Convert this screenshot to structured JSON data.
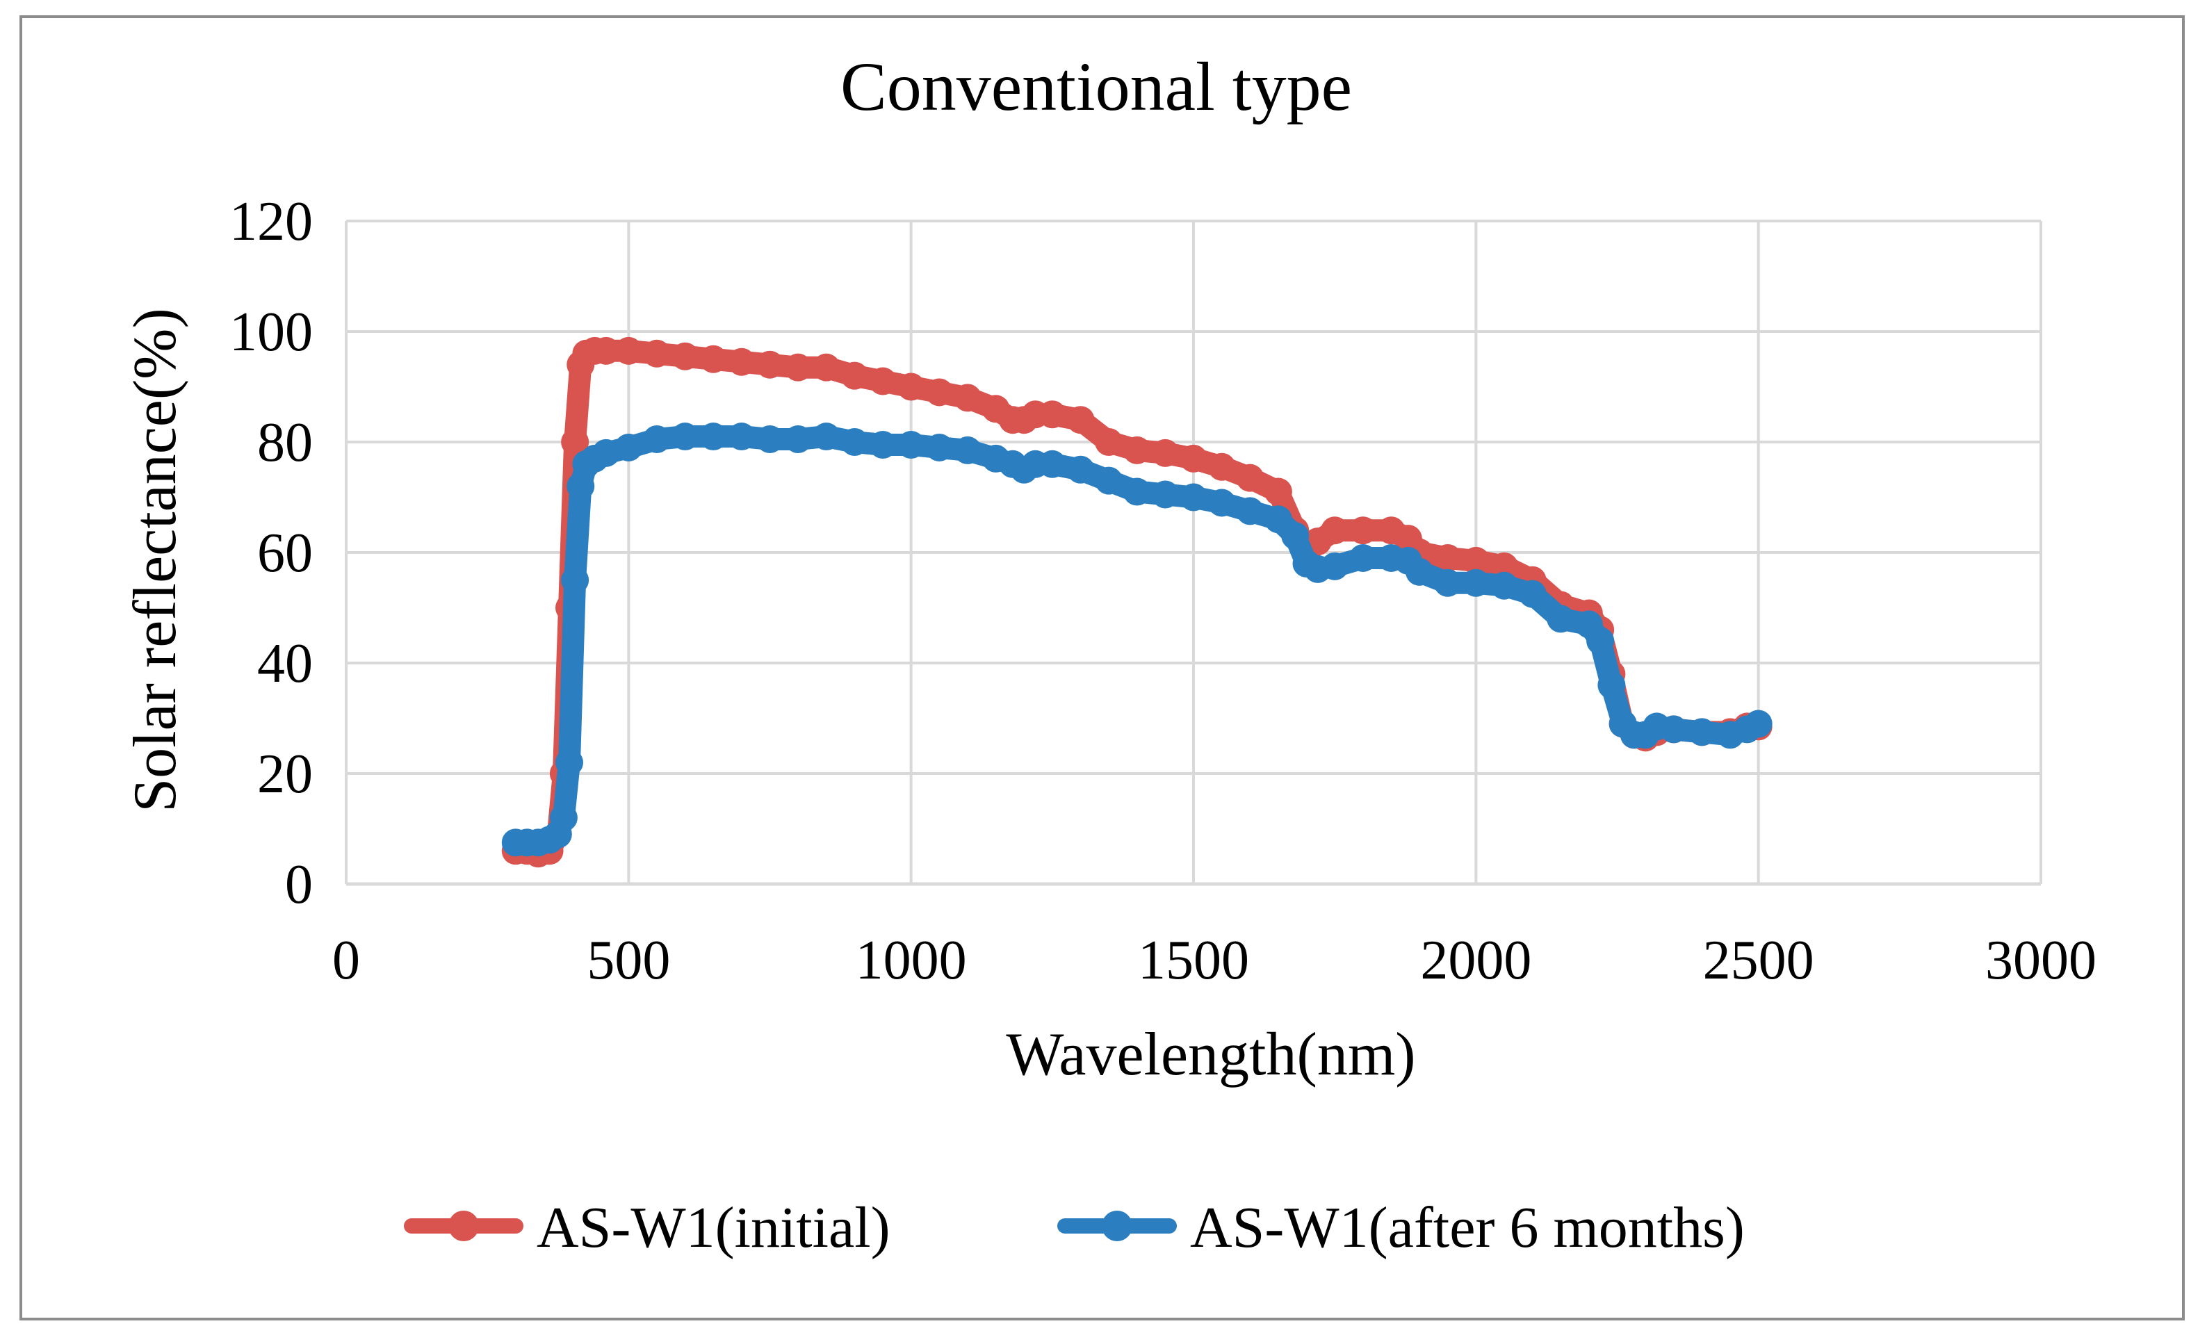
{
  "chart_data": {
    "type": "line",
    "title": "Conventional type",
    "xlabel": "Wavelength(nm)",
    "ylabel": "Solar reflectance(%)",
    "xlim": [
      0,
      3000
    ],
    "ylim": [
      0,
      120
    ],
    "xticks": [
      0,
      500,
      1000,
      1500,
      2000,
      2500,
      3000
    ],
    "yticks": [
      0,
      20,
      40,
      60,
      80,
      100,
      120
    ],
    "grid": true,
    "legend_position": "bottom",
    "series": [
      {
        "name": "AS-W1(initial)",
        "color": "#d9534f",
        "x": [
          300,
          320,
          340,
          360,
          375,
          385,
          395,
          405,
          415,
          425,
          440,
          460,
          500,
          550,
          600,
          650,
          700,
          750,
          800,
          850,
          900,
          950,
          1000,
          1050,
          1100,
          1150,
          1180,
          1200,
          1220,
          1250,
          1300,
          1350,
          1400,
          1450,
          1500,
          1550,
          1600,
          1650,
          1680,
          1700,
          1720,
          1750,
          1800,
          1850,
          1880,
          1900,
          1950,
          2000,
          2050,
          2100,
          2150,
          2200,
          2220,
          2240,
          2260,
          2280,
          2300,
          2320,
          2350,
          2400,
          2450,
          2480,
          2500
        ],
        "y": [
          6,
          6,
          5.5,
          6,
          9,
          20,
          50,
          80,
          94,
          96,
          96.5,
          96.5,
          96.5,
          96,
          95.5,
          95,
          94.5,
          94,
          93.5,
          93.5,
          92,
          91,
          90,
          89,
          88,
          86,
          84,
          84,
          85,
          85,
          84,
          80,
          78.5,
          78,
          77,
          75.5,
          73.5,
          71,
          64,
          60,
          62,
          64,
          64,
          64,
          62.5,
          60,
          59,
          58.5,
          57.5,
          55,
          50.5,
          49,
          46,
          38,
          29,
          27,
          26.5,
          27.5,
          28,
          27.5,
          27.5,
          28.5,
          28.5
        ]
      },
      {
        "name": "AS-W1(after 6 months)",
        "color": "#2b7fc0",
        "x": [
          300,
          320,
          340,
          360,
          375,
          385,
          395,
          405,
          415,
          425,
          440,
          460,
          500,
          550,
          600,
          650,
          700,
          750,
          800,
          850,
          900,
          950,
          1000,
          1050,
          1100,
          1150,
          1180,
          1200,
          1220,
          1250,
          1300,
          1350,
          1400,
          1450,
          1500,
          1550,
          1600,
          1650,
          1680,
          1700,
          1720,
          1750,
          1800,
          1850,
          1880,
          1900,
          1950,
          2000,
          2050,
          2100,
          2150,
          2200,
          2220,
          2240,
          2260,
          2280,
          2300,
          2320,
          2350,
          2400,
          2450,
          2480,
          2500
        ],
        "y": [
          7.5,
          7.5,
          7.5,
          8,
          9,
          12,
          22,
          55,
          72,
          76,
          77,
          78,
          79,
          80.5,
          81,
          81,
          81,
          80.5,
          80.5,
          81,
          80,
          79.5,
          79.5,
          79,
          78.5,
          77,
          76,
          75,
          76,
          76,
          75,
          73,
          71,
          70.5,
          70,
          69,
          67.5,
          66,
          63,
          58,
          57,
          57.5,
          59,
          59,
          58.5,
          56.5,
          54.5,
          54.5,
          54,
          52.5,
          48,
          47,
          44,
          36,
          29,
          27,
          27,
          28.5,
          28,
          27.5,
          27,
          28,
          29
        ]
      }
    ]
  }
}
